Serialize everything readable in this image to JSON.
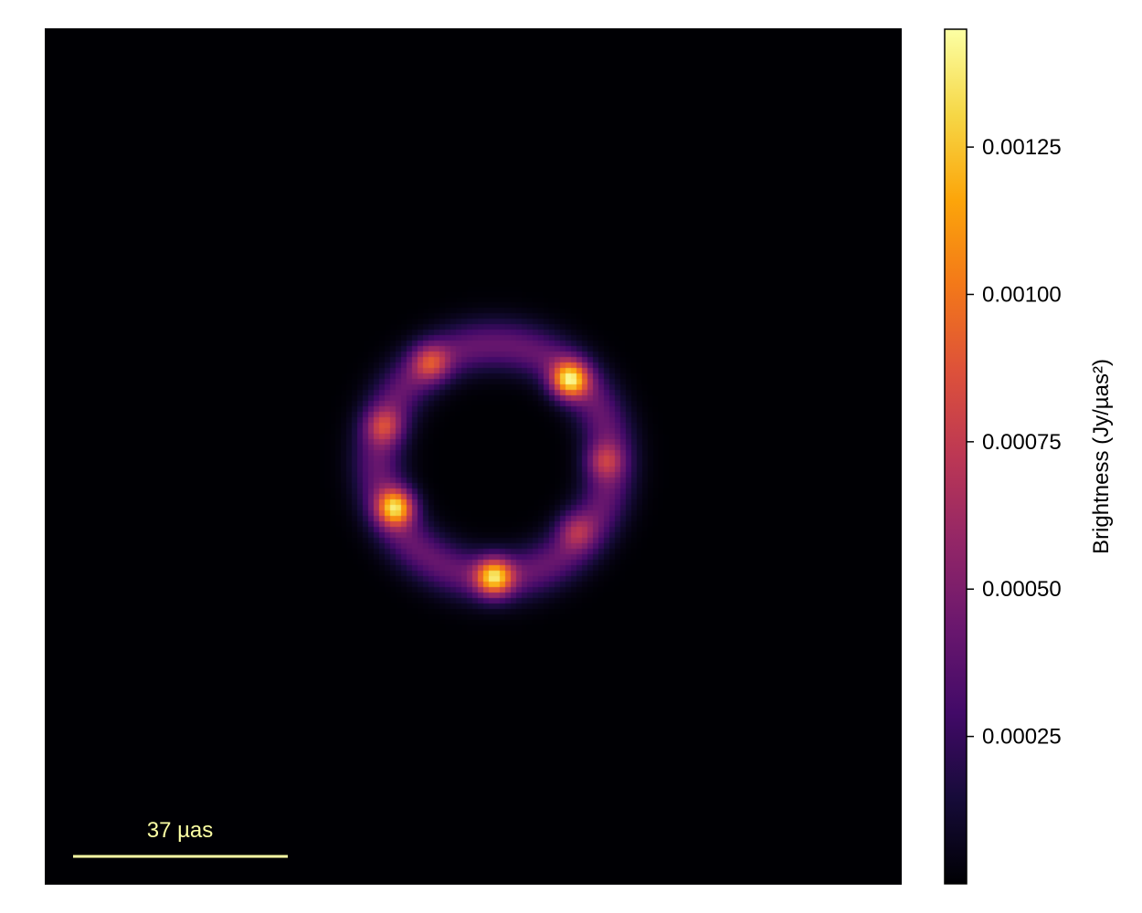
{
  "chart_data": {
    "type": "heatmap",
    "title": "",
    "colormap": "inferno",
    "background_color": "#000004",
    "image_features": {
      "ring_center": [
        0.0,
        0.0
      ],
      "ring_radius_uas": 20,
      "ring_width_uas": 6,
      "hotspots": [
        {
          "position_uas": [
            13,
            14
          ],
          "peak_brightness": 0.00145
        },
        {
          "position_uas": [
            -17,
            -8
          ],
          "peak_brightness": 0.0014
        },
        {
          "position_uas": [
            0,
            -20
          ],
          "peak_brightness": 0.00138
        },
        {
          "position_uas": [
            -11,
            17
          ],
          "peak_brightness": 0.0009
        },
        {
          "position_uas": [
            -19,
            6
          ],
          "peak_brightness": 0.00085
        },
        {
          "position_uas": [
            19,
            0
          ],
          "peak_brightness": 0.0008
        },
        {
          "position_uas": [
            14,
            -12
          ],
          "peak_brightness": 0.00075
        }
      ]
    },
    "scalebar": {
      "label": "37 µas",
      "length_uas": 37,
      "color": "#fcffa4"
    },
    "colorbar": {
      "label": "Brightness (Jy/µas²)",
      "range": [
        0.0,
        0.00145
      ],
      "ticks": [
        {
          "value": 0.00025,
          "label": "0.00025"
        },
        {
          "value": 0.0005,
          "label": "0.00050"
        },
        {
          "value": 0.00075,
          "label": "0.00075"
        },
        {
          "value": 0.001,
          "label": "0.00100"
        },
        {
          "value": 0.00125,
          "label": "0.00125"
        }
      ]
    }
  }
}
